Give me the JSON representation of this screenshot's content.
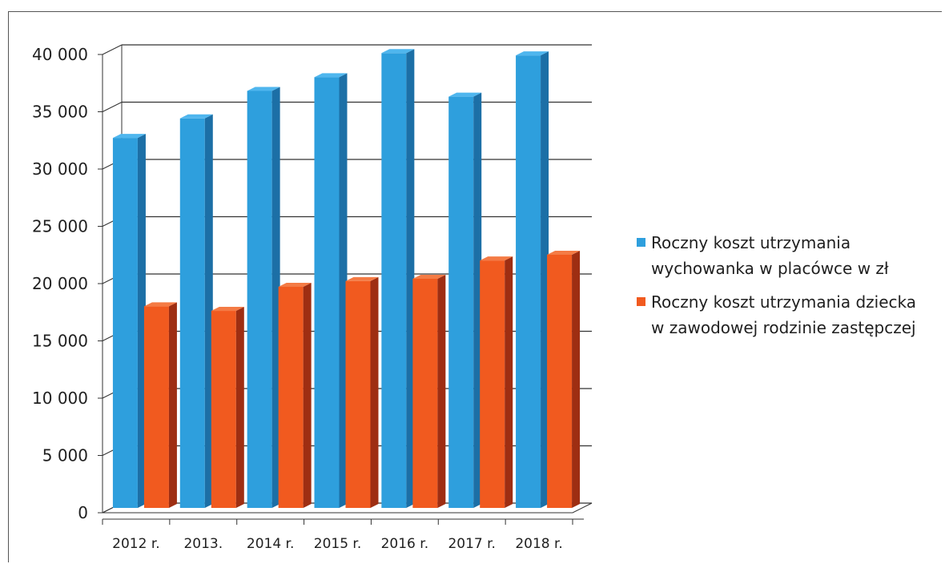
{
  "chart_data": {
    "type": "bar",
    "categories": [
      "2012 r.",
      "2013.",
      "2014 r.",
      "2015 r.",
      "2016 r.",
      "2017 r.",
      "2018 r."
    ],
    "series": [
      {
        "name": "Roczny koszt utrzymania wychowanka w placówce w zł",
        "name_lines": [
          "Roczny koszt utrzymania",
          "wychowanka w placówce w zł"
        ],
        "values": [
          32300,
          34000,
          36400,
          37600,
          39700,
          35900,
          39500
        ],
        "color": "#2e9fdd",
        "side_color": "#1c6fa6",
        "top_color": "#4fb6ee"
      },
      {
        "name": "Roczny koszt utrzymania dziecka w zawodowej rodzinie zastępczej",
        "name_lines": [
          "Roczny koszt utrzymania dziecka",
          "w zawodowej rodzinie zastępczej"
        ],
        "values": [
          17600,
          17200,
          19300,
          19800,
          20000,
          21600,
          22100
        ],
        "color": "#f15a1f",
        "side_color": "#9e2e12",
        "top_color": "#f47b45"
      }
    ],
    "ylim": [
      0,
      40000
    ],
    "yticks": [
      0,
      5000,
      10000,
      15000,
      20000,
      25000,
      30000,
      35000,
      40000
    ],
    "ytick_labels": [
      "0",
      "5 000",
      "10 000",
      "15 000",
      "20 000",
      "25 000",
      "30 000",
      "35 000",
      "40 000"
    ],
    "grid": true,
    "legend_position": "right",
    "title": "",
    "xlabel": "",
    "ylabel": ""
  }
}
